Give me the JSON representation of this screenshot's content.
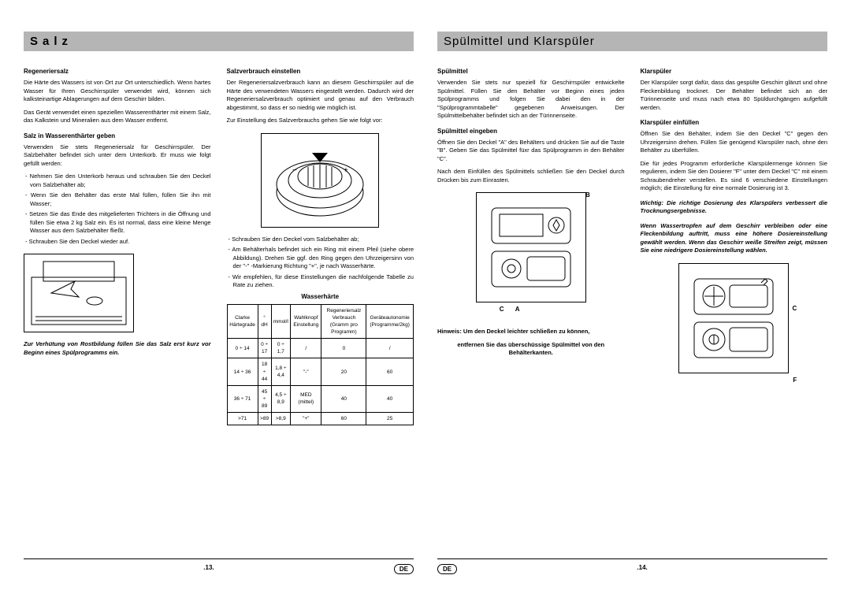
{
  "left": {
    "title": "Salz",
    "col1": {
      "h1": "Regeneriersalz",
      "p1": "Die Härte des Wassers ist von Ort zur Ort unterschiedlich. Wenn hartes Wasser für Ihren Geschirrspüler verwendet wird, können sich kalksteinartige Ablagerungen auf dem Geschirr bilden.",
      "p2": "Das Gerät verwendet einen speziellen Wasserenthärter mit einem Salz, das Kalkstein und Mineralien aus dem Wasser entfernt.",
      "h2": "Salz in Wasserenthärter geben",
      "p3": "Verwenden Sie stets Regeneriersalz für Geschirrspüler. Der Salzbehälter befindet sich unter dem Unterkorb. Er muss wie folgt gefüllt werden:",
      "li1": "Nehmen Sie den Unterkorb heraus und schrauben Sie den Deckel vom Salzbehälter ab;",
      "li2": "Wenn Sie den Behälter das erste Mal füllen, füllen Sie ihn mit Wasser;",
      "li3": "Setzen Sie das Ende des mitgelieferten Trichters in die Öffnung und füllen Sie etwa 2 kg Salz ein. Es ist normal, dass eine kleine Menge Wasser aus dem Salzbehälter fließt.",
      "li4": "Schrauben Sie den Deckel wieder auf.",
      "warn": "Zur Verhütung von Rostbildung füllen Sie das Salz erst kurz vor Beginn eines Spülprogramms ein."
    },
    "col2": {
      "h1": "Salzverbrauch einstellen",
      "p1": "Der Regeneriersalzverbrauch kann an diesem Geschirrspüler auf die Härte des verwendeten Wassers eingestellt werden. Dadurch wird der Regeneriersalzverbrauch optimiert und genau auf den Verbrauch abgestimmt, so dass er so niedrig wie möglich ist.",
      "p2": "Zur Einstellung des Salzverbrauchs gehen Sie wie folgt vor:",
      "li1": "Schrauben Sie den Deckel vom Salzbehälter ab;",
      "li2": "Am Behälterhals befindet sich ein Ring mit einem Pfeil (siehe obere Abbildung). Drehen Sie ggf. den Ring gegen den Uhrzeigersinn von der \"-\" -Markierung Richtung \"+\", je nach Wasserhärte.",
      "li3": "Wir empfehlen, für diese Einstellungen die nachfolgende Tabelle zu Rate zu ziehen."
    },
    "table": {
      "title": "Wasserhärte",
      "headers": [
        "Clarke Härtegrade",
        "° dH",
        "mmol/l",
        "Wahlknopf Einstellung",
        "Regeneriersalz Verbrauch (Gramm pro Programm)",
        "Geräteautonomie (Programme/2kg)"
      ],
      "rows": [
        [
          "0 ÷ 14",
          "0 ÷ 17",
          "0 ÷ 1,7",
          "/",
          "0",
          "/"
        ],
        [
          "14 ÷ 36",
          "18 ÷ 44",
          "1,8 ÷ 4,4",
          "\"-\"",
          "20",
          "60"
        ],
        [
          "36 ÷ 71",
          "45 ÷ 89",
          "4,5 ÷ 8,9",
          "MED (mittel)",
          "40",
          "40"
        ],
        [
          ">71",
          ">89",
          ">8,9",
          "\"+\"",
          "60",
          "25"
        ]
      ]
    },
    "pagenum": ".13.",
    "lang": "DE"
  },
  "right": {
    "title": "Spülmittel und Klarspüler",
    "col1": {
      "h1": "Spülmittel",
      "p1": "Verwenden Sie stets nur speziell für Geschirrspüler entwickelte Spülmittel. Füllen Sie den Behälter vor Beginn eines jeden Spülprogramms und folgen Sie dabei den in der \"Spülprogrammtabelle\" gegebenen Anweisungen. Der Spülmittelbehälter befindet sich an der Türinnenseite.",
      "h2": "Spülmittel eingeben",
      "p2": "Öffnen Sie den Deckel \"A\" des Behälters und drücken Sie auf die Taste \"B\". Geben Sie das Spülmittel füxr das Spülprogramm in den Behälter \"C\".",
      "p3": "Nach dem Einfüllen des Spülmittels schließen Sie den Deckel durch Drücken bis zum Einrasten.",
      "hint1": "Hinweis: Um den Deckel leichter schließen zu können,",
      "hint2": "entfernen Sie das überschüssige Spülmittel von den Behälterkanten."
    },
    "col2": {
      "h1": "Klarspüler",
      "p1": "Der Klarspüler sorgt dafür, dass das gespülte Geschirr glänzt und ohne Fleckenbildung trocknet. Der Behälter befindet sich an der Türinnenseite und muss nach etwa 80 Spüldurchgängen aufgefüllt werden.",
      "h2": "Klarspüler einfüllen",
      "p2": "Öffnen Sie den Behälter, indem Sie den Deckel \"C\" gegen den Uhrzeigersinn drehen. Füllen Sie genügend Klarspüler nach, ohne den Behälter zu überfüllen.",
      "p3": "Die für jedes Programm erforderliche Klarspülermenge können Sie regulieren, indem Sie den Dosierer \"F\" unter dem Deckel \"C\" mit einem Schraubendreher verstellen. Es sind 6 verschiedene Einstellungen möglich; die Einstellung für eine normale Dosierung ist 3.",
      "warn1": "Wichtig: Die richtige Dosierung des Klarspülers verbessert die Trocknungsergebnisse.",
      "warn2": "Wenn Wassertropfen auf dem Geschirr verbleiben oder eine Fleckenbildung auftritt, muss eine höhere Dosiereinstellung gewählt werden. Wenn das Geschirr weiße Streifen zeigt, müssen Sie eine niedrigere Dosiereinstellung wählen."
    },
    "labels": {
      "B": "B",
      "C": "C",
      "A": "A",
      "F": "F"
    },
    "pagenum": ".14.",
    "lang": "DE"
  }
}
